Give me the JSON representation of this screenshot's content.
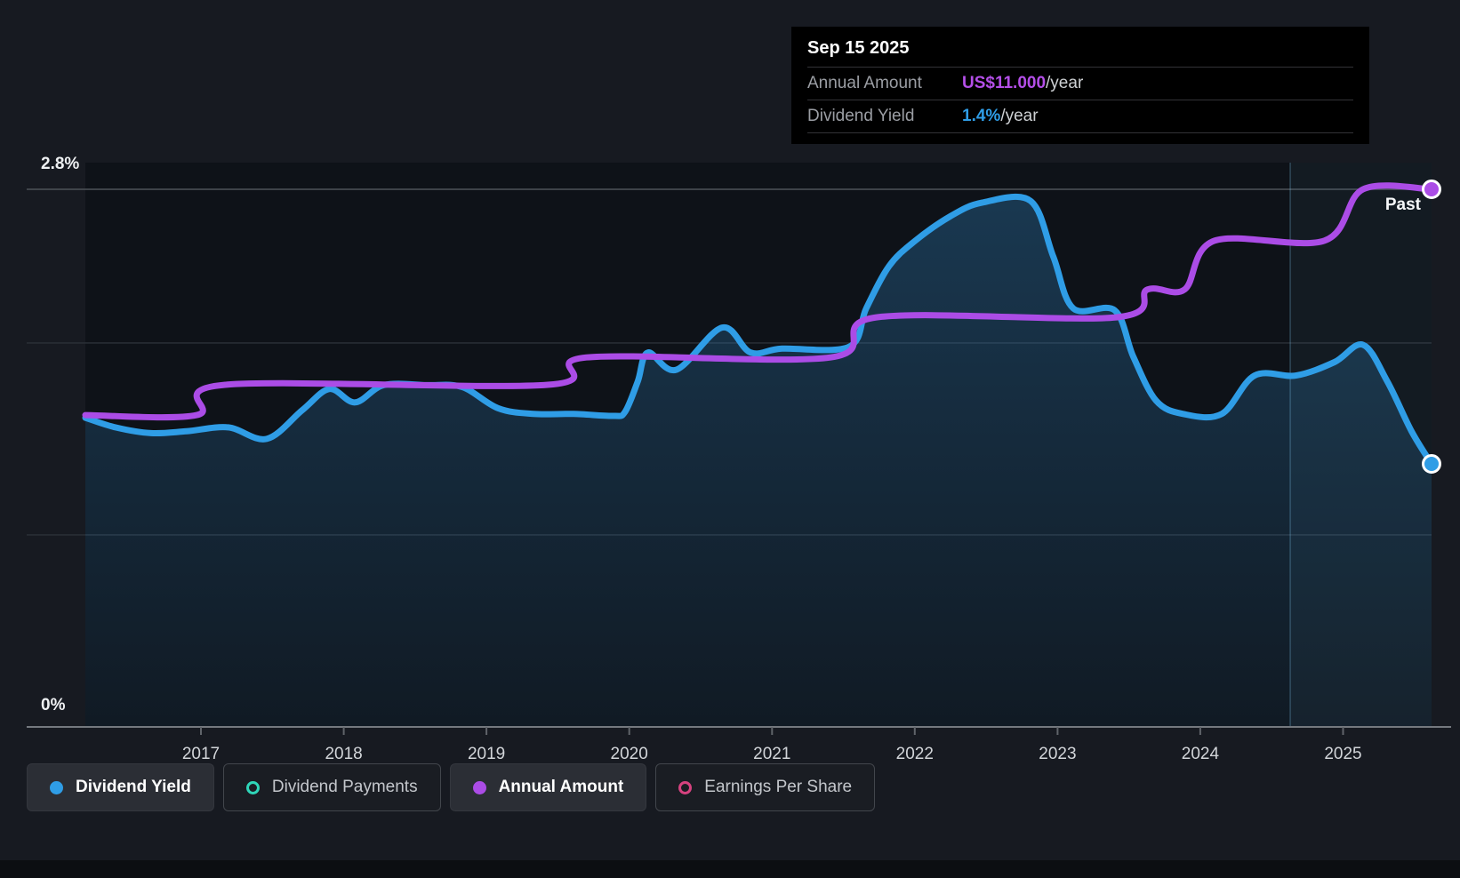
{
  "page": {
    "background": "#171a21"
  },
  "tooltip": {
    "date": "Sep 15 2025",
    "rows": [
      {
        "label": "Annual Amount",
        "value": "US$11.000",
        "suffix": "/year",
        "value_color": "#b44fe8"
      },
      {
        "label": "Dividend Yield",
        "value": "1.4%",
        "suffix": "/year",
        "value_color": "#2f9de6"
      }
    ]
  },
  "chart_data": {
    "type": "line",
    "past_label": "Past",
    "ylabel_top": "2.8%",
    "ylabel_bottom": "0%",
    "x_domain": [
      2016.19,
      2025.62
    ],
    "x_ticks": [
      2017,
      2018,
      2019,
      2020,
      2021,
      2022,
      2023,
      2024,
      2025
    ],
    "y_domain_yield": [
      0,
      2.8
    ],
    "y_domain_amount": [
      0,
      11
    ],
    "gridlines_yield": [
      2.8,
      2.0,
      1.0
    ],
    "highlight_band": [
      2024.63,
      2025.62
    ],
    "grid": true,
    "legend_position": "bottom",
    "series": [
      {
        "name": "Dividend Yield",
        "axis": "yield",
        "unit": "%",
        "color": "#2f9de6",
        "area": true,
        "end_marker": true,
        "points": [
          [
            2016.19,
            1.61
          ],
          [
            2016.4,
            1.56
          ],
          [
            2016.65,
            1.53
          ],
          [
            2016.9,
            1.54
          ],
          [
            2017.19,
            1.56
          ],
          [
            2017.46,
            1.5
          ],
          [
            2017.71,
            1.65
          ],
          [
            2017.9,
            1.76
          ],
          [
            2018.08,
            1.69
          ],
          [
            2018.28,
            1.78
          ],
          [
            2018.58,
            1.78
          ],
          [
            2018.83,
            1.77
          ],
          [
            2019.08,
            1.66
          ],
          [
            2019.33,
            1.63
          ],
          [
            2019.61,
            1.63
          ],
          [
            2019.89,
            1.62
          ],
          [
            2019.97,
            1.64
          ],
          [
            2020.06,
            1.8
          ],
          [
            2020.13,
            1.95
          ],
          [
            2020.33,
            1.86
          ],
          [
            2020.65,
            2.08
          ],
          [
            2020.85,
            1.95
          ],
          [
            2021.07,
            1.97
          ],
          [
            2021.54,
            1.98
          ],
          [
            2021.66,
            2.18
          ],
          [
            2021.82,
            2.4
          ],
          [
            2022.0,
            2.53
          ],
          [
            2022.25,
            2.66
          ],
          [
            2022.47,
            2.73
          ],
          [
            2022.81,
            2.74
          ],
          [
            2022.97,
            2.45
          ],
          [
            2023.11,
            2.18
          ],
          [
            2023.4,
            2.17
          ],
          [
            2023.53,
            1.93
          ],
          [
            2023.69,
            1.7
          ],
          [
            2023.88,
            1.63
          ],
          [
            2024.15,
            1.63
          ],
          [
            2024.38,
            1.83
          ],
          [
            2024.67,
            1.83
          ],
          [
            2024.94,
            1.9
          ],
          [
            2025.14,
            1.99
          ],
          [
            2025.31,
            1.8
          ],
          [
            2025.48,
            1.54
          ],
          [
            2025.62,
            1.37
          ]
        ]
      },
      {
        "name": "Annual Amount",
        "axis": "amount",
        "unit": "US$",
        "color": "#ab4ce6",
        "area": false,
        "end_marker": true,
        "points": [
          [
            2016.19,
            6.38
          ],
          [
            2016.97,
            6.38
          ],
          [
            2017.17,
            7.0
          ],
          [
            2019.43,
            7.0
          ],
          [
            2019.7,
            7.56
          ],
          [
            2021.41,
            7.56
          ],
          [
            2021.73,
            8.38
          ],
          [
            2023.41,
            8.38
          ],
          [
            2023.63,
            8.95
          ],
          [
            2023.89,
            8.95
          ],
          [
            2024.1,
            9.95
          ],
          [
            2024.87,
            9.95
          ],
          [
            2025.14,
            11.0
          ],
          [
            2025.62,
            11.0
          ]
        ]
      }
    ]
  },
  "legend": [
    {
      "label": "Dividend Yield",
      "marker": "filled",
      "color": "#2f9de6",
      "active": true
    },
    {
      "label": "Dividend Payments",
      "marker": "hollow",
      "color": "#2fd5b8",
      "active": false
    },
    {
      "label": "Annual Amount",
      "marker": "filled",
      "color": "#ab4ce6",
      "active": true
    },
    {
      "label": "Earnings Per Share",
      "marker": "hollow",
      "color": "#d6427f",
      "active": false
    }
  ]
}
